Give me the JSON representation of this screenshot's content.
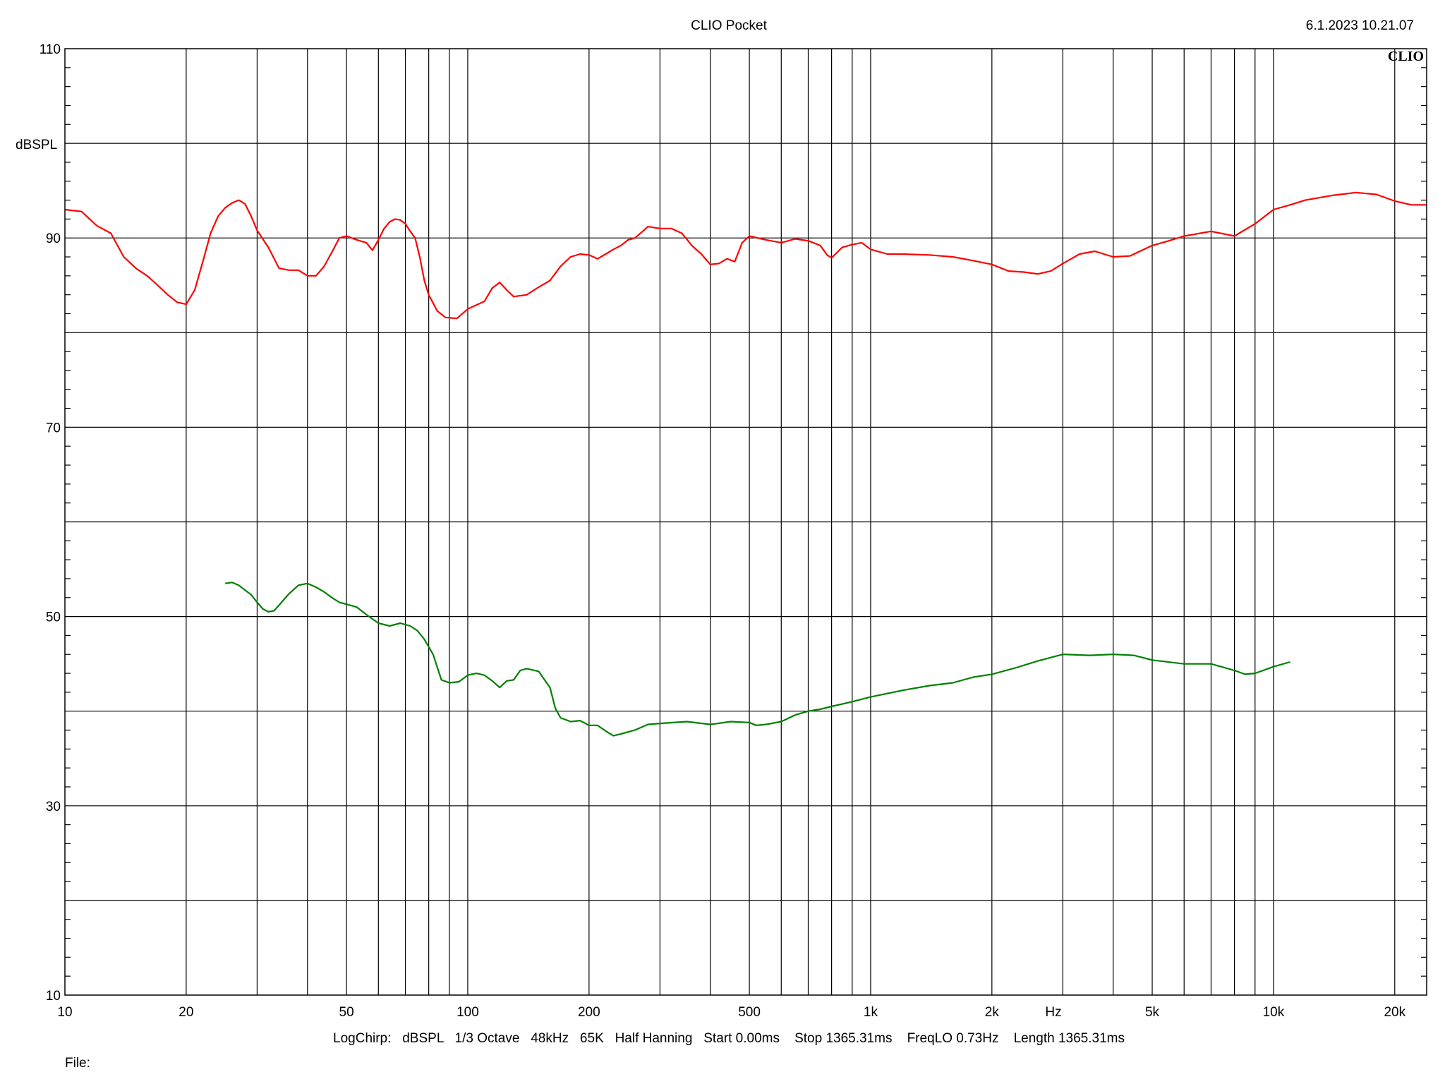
{
  "header": {
    "title": "CLIO Pocket",
    "timestamp": "6.1.2023 10.21.07",
    "brand": "CLIO"
  },
  "footer": {
    "settings": "LogChirp:   dBSPL   1/3 Octave   48kHz   65K   Half Hanning   Start 0.00ms    Stop 1365.31ms    FreqLO 0.73Hz    Length 1365.31ms",
    "file_label": "File:"
  },
  "chart_data": {
    "type": "line",
    "title": "CLIO Pocket",
    "xlabel": "Hz",
    "ylabel": "dBSPL",
    "xscale": "log",
    "xlim": [
      10,
      24000
    ],
    "ylim": [
      10,
      110
    ],
    "grid": true,
    "x_tick_labels": [
      {
        "value": 10,
        "label": "10"
      },
      {
        "value": 20,
        "label": "20"
      },
      {
        "value": 50,
        "label": "50"
      },
      {
        "value": 100,
        "label": "100"
      },
      {
        "value": 200,
        "label": "200"
      },
      {
        "value": 500,
        "label": "500"
      },
      {
        "value": 1000,
        "label": "1k"
      },
      {
        "value": 2000,
        "label": "2k"
      },
      {
        "value": 5000,
        "label": "5k"
      },
      {
        "value": 10000,
        "label": "10k"
      },
      {
        "value": 20000,
        "label": "20k"
      }
    ],
    "y_tick_labels": [
      {
        "value": 110,
        "label": "110"
      },
      {
        "value": 90,
        "label": "90"
      },
      {
        "value": 70,
        "label": "70"
      },
      {
        "value": 50,
        "label": "50"
      },
      {
        "value": 30,
        "label": "30"
      },
      {
        "value": 10,
        "label": "10"
      }
    ],
    "series": [
      {
        "color": "#ff0000",
        "points": [
          [
            10,
            93
          ],
          [
            11,
            92.8
          ],
          [
            12,
            91.3
          ],
          [
            13,
            90.5
          ],
          [
            14,
            88
          ],
          [
            15,
            86.8
          ],
          [
            16,
            86
          ],
          [
            17,
            85
          ],
          [
            18,
            84
          ],
          [
            19,
            83.2
          ],
          [
            20,
            83
          ],
          [
            21,
            84.5
          ],
          [
            22,
            87.5
          ],
          [
            23,
            90.5
          ],
          [
            24,
            92.3
          ],
          [
            25,
            93.2
          ],
          [
            26,
            93.7
          ],
          [
            27,
            94
          ],
          [
            28,
            93.6
          ],
          [
            29,
            92.3
          ],
          [
            30,
            90.8
          ],
          [
            32,
            89
          ],
          [
            34,
            86.8
          ],
          [
            36,
            86.6
          ],
          [
            38,
            86.6
          ],
          [
            40,
            86
          ],
          [
            42,
            86
          ],
          [
            44,
            87
          ],
          [
            46,
            88.5
          ],
          [
            48,
            90
          ],
          [
            50,
            90.2
          ],
          [
            53,
            89.8
          ],
          [
            56,
            89.5
          ],
          [
            58,
            88.7
          ],
          [
            60,
            89.8
          ],
          [
            62,
            91
          ],
          [
            64,
            91.7
          ],
          [
            66,
            92
          ],
          [
            68,
            91.9
          ],
          [
            70,
            91.5
          ],
          [
            72,
            90.7
          ],
          [
            74,
            90
          ],
          [
            76,
            88
          ],
          [
            78,
            85.5
          ],
          [
            80,
            84
          ],
          [
            84,
            82.3
          ],
          [
            88,
            81.6
          ],
          [
            94,
            81.5
          ],
          [
            100,
            82.5
          ],
          [
            110,
            83.3
          ],
          [
            115,
            84.7
          ],
          [
            120,
            85.3
          ],
          [
            125,
            84.5
          ],
          [
            130,
            83.8
          ],
          [
            140,
            84
          ],
          [
            150,
            84.8
          ],
          [
            160,
            85.5
          ],
          [
            170,
            87
          ],
          [
            180,
            88
          ],
          [
            190,
            88.3
          ],
          [
            200,
            88.2
          ],
          [
            210,
            87.8
          ],
          [
            220,
            88.3
          ],
          [
            230,
            88.8
          ],
          [
            240,
            89.2
          ],
          [
            250,
            89.8
          ],
          [
            260,
            90
          ],
          [
            270,
            90.6
          ],
          [
            280,
            91.2
          ],
          [
            300,
            91
          ],
          [
            320,
            91
          ],
          [
            340,
            90.5
          ],
          [
            360,
            89.2
          ],
          [
            380,
            88.3
          ],
          [
            400,
            87.2
          ],
          [
            420,
            87.3
          ],
          [
            440,
            87.8
          ],
          [
            460,
            87.5
          ],
          [
            480,
            89.5
          ],
          [
            500,
            90.2
          ],
          [
            550,
            89.8
          ],
          [
            600,
            89.5
          ],
          [
            650,
            89.9
          ],
          [
            700,
            89.7
          ],
          [
            750,
            89.2
          ],
          [
            780,
            88.2
          ],
          [
            800,
            87.9
          ],
          [
            850,
            89
          ],
          [
            900,
            89.3
          ],
          [
            950,
            89.5
          ],
          [
            1000,
            88.8
          ],
          [
            1100,
            88.3
          ],
          [
            1200,
            88.3
          ],
          [
            1400,
            88.2
          ],
          [
            1600,
            88
          ],
          [
            1800,
            87.6
          ],
          [
            2000,
            87.2
          ],
          [
            2200,
            86.5
          ],
          [
            2400,
            86.4
          ],
          [
            2600,
            86.2
          ],
          [
            2800,
            86.5
          ],
          [
            3000,
            87.3
          ],
          [
            3300,
            88.3
          ],
          [
            3600,
            88.6
          ],
          [
            4000,
            88
          ],
          [
            4400,
            88.1
          ],
          [
            5000,
            89.2
          ],
          [
            5500,
            89.7
          ],
          [
            6000,
            90.2
          ],
          [
            7000,
            90.7
          ],
          [
            8000,
            90.2
          ],
          [
            9000,
            91.5
          ],
          [
            10000,
            93
          ],
          [
            11000,
            93.5
          ],
          [
            12000,
            94
          ],
          [
            14000,
            94.5
          ],
          [
            16000,
            94.8
          ],
          [
            18000,
            94.6
          ],
          [
            20000,
            93.9
          ],
          [
            22000,
            93.5
          ],
          [
            24000,
            93.5
          ]
        ]
      },
      {
        "color": "#008000",
        "points": [
          [
            25,
            53.5
          ],
          [
            26,
            53.6
          ],
          [
            27,
            53.3
          ],
          [
            28,
            52.8
          ],
          [
            29,
            52.3
          ],
          [
            30,
            51.5
          ],
          [
            31,
            50.8
          ],
          [
            32,
            50.5
          ],
          [
            33,
            50.6
          ],
          [
            34,
            51.2
          ],
          [
            36,
            52.4
          ],
          [
            38,
            53.3
          ],
          [
            40,
            53.5
          ],
          [
            42,
            53.1
          ],
          [
            44,
            52.6
          ],
          [
            46,
            52
          ],
          [
            48,
            51.5
          ],
          [
            50,
            51.3
          ],
          [
            53,
            51
          ],
          [
            56,
            50.2
          ],
          [
            60,
            49.3
          ],
          [
            64,
            49
          ],
          [
            68,
            49.3
          ],
          [
            72,
            49
          ],
          [
            75,
            48.5
          ],
          [
            78,
            47.6
          ],
          [
            82,
            46
          ],
          [
            86,
            43.3
          ],
          [
            90,
            43
          ],
          [
            95,
            43.1
          ],
          [
            100,
            43.8
          ],
          [
            105,
            44
          ],
          [
            110,
            43.8
          ],
          [
            115,
            43.2
          ],
          [
            120,
            42.5
          ],
          [
            125,
            43.2
          ],
          [
            130,
            43.3
          ],
          [
            135,
            44.3
          ],
          [
            140,
            44.5
          ],
          [
            150,
            44.2
          ],
          [
            160,
            42.5
          ],
          [
            165,
            40.3
          ],
          [
            170,
            39.3
          ],
          [
            180,
            38.9
          ],
          [
            190,
            39
          ],
          [
            200,
            38.5
          ],
          [
            210,
            38.5
          ],
          [
            220,
            37.9
          ],
          [
            230,
            37.4
          ],
          [
            240,
            37.6
          ],
          [
            260,
            38
          ],
          [
            280,
            38.6
          ],
          [
            300,
            38.7
          ],
          [
            350,
            38.9
          ],
          [
            400,
            38.6
          ],
          [
            450,
            38.9
          ],
          [
            500,
            38.8
          ],
          [
            520,
            38.5
          ],
          [
            550,
            38.6
          ],
          [
            600,
            38.9
          ],
          [
            650,
            39.6
          ],
          [
            700,
            40
          ],
          [
            750,
            40.2
          ],
          [
            800,
            40.5
          ],
          [
            900,
            41
          ],
          [
            1000,
            41.5
          ],
          [
            1200,
            42.2
          ],
          [
            1400,
            42.7
          ],
          [
            1600,
            43
          ],
          [
            1800,
            43.6
          ],
          [
            2000,
            43.9
          ],
          [
            2300,
            44.6
          ],
          [
            2600,
            45.3
          ],
          [
            3000,
            46
          ],
          [
            3500,
            45.9
          ],
          [
            4000,
            46
          ],
          [
            4500,
            45.9
          ],
          [
            5000,
            45.4
          ],
          [
            6000,
            45
          ],
          [
            7000,
            45
          ],
          [
            8000,
            44.3
          ],
          [
            8500,
            43.9
          ],
          [
            9000,
            44
          ],
          [
            10000,
            44.7
          ],
          [
            11000,
            45.2
          ]
        ]
      }
    ]
  }
}
